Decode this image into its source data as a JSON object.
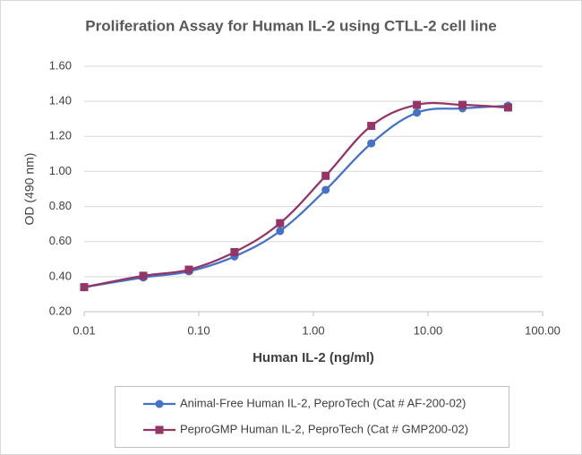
{
  "chart_data": {
    "type": "line",
    "title": "Proliferation Assay for Human IL-2 using CTLL-2 cell line",
    "x_label": "Human IL-2 (ng/ml)",
    "y_label": "OD (490 nm)",
    "x_scale": "log",
    "x": [
      0.01,
      0.0328,
      0.082,
      0.205,
      0.512,
      1.28,
      3.2,
      8,
      20,
      50
    ],
    "series": [
      {
        "name": "Animal-Free Human IL-2, PeproTech (Cat # AF-200-02)",
        "color": "#4472c4",
        "marker": "circle",
        "values": [
          0.34,
          0.395,
          0.43,
          0.515,
          0.66,
          0.895,
          1.16,
          1.335,
          1.36,
          1.375
        ]
      },
      {
        "name": "PeproGMP Human IL-2, PeproTech (Cat # GMP200-02)",
        "color": "#943567",
        "marker": "square",
        "values": [
          0.34,
          0.405,
          0.44,
          0.54,
          0.705,
          0.975,
          1.26,
          1.38,
          1.38,
          1.365
        ]
      }
    ],
    "xlim": [
      0.01,
      100
    ],
    "xticks": [
      {
        "value": 0.01,
        "label": "0.01"
      },
      {
        "value": 0.1,
        "label": "0.10"
      },
      {
        "value": 1,
        "label": "1.00"
      },
      {
        "value": 10,
        "label": "10.00"
      },
      {
        "value": 100,
        "label": "100.00"
      }
    ],
    "ylim": [
      0.2,
      1.6
    ],
    "yticks": [
      {
        "value": 0.2,
        "label": "0.20"
      },
      {
        "value": 0.4,
        "label": "0.40"
      },
      {
        "value": 0.6,
        "label": "0.60"
      },
      {
        "value": 0.8,
        "label": "0.80"
      },
      {
        "value": 1.0,
        "label": "1.00"
      },
      {
        "value": 1.2,
        "label": "1.20"
      },
      {
        "value": 1.4,
        "label": "1.40"
      },
      {
        "value": 1.6,
        "label": "1.60"
      }
    ],
    "grid": true,
    "legend": "bottom"
  }
}
